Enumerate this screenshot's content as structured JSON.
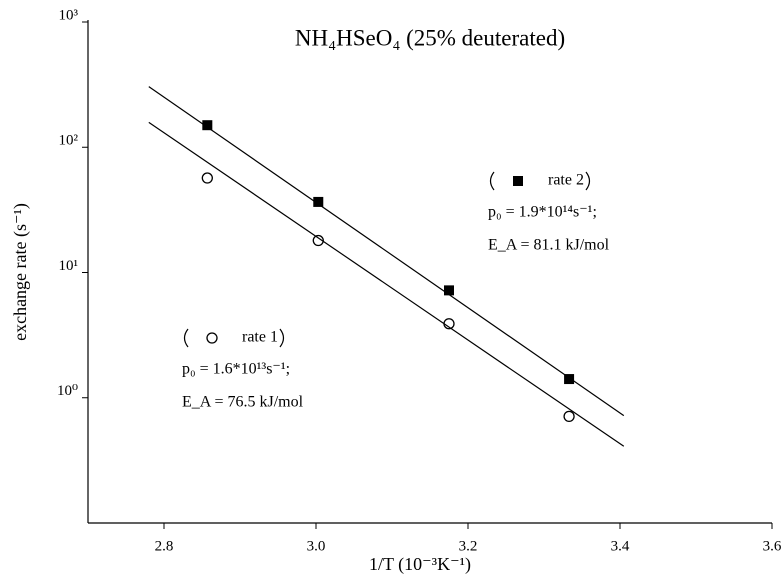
{
  "chart_data": {
    "type": "scatter",
    "title": "NH₄HSeO₄ (25% deuterated)",
    "xlabel": "1/T (10⁻³K⁻¹)",
    "ylabel": "exchange rate (s⁻¹)",
    "xlim": [
      2.7,
      3.6
    ],
    "xticks": [
      2.8,
      3.0,
      3.2,
      3.4,
      3.6
    ],
    "xtick_labels": [
      "2.8",
      "3.0",
      "3.2",
      "3.4",
      "3.6"
    ],
    "ylim": [
      0.1,
      1000
    ],
    "yscale": "log",
    "yticks": [
      {
        "value": 1,
        "label": "10⁰"
      },
      {
        "value": 10,
        "label": "10¹"
      },
      {
        "value": 100,
        "label": "10²"
      },
      {
        "value": 1000,
        "label": "10³"
      }
    ],
    "series": [
      {
        "name": "rate 2",
        "marker": "square",
        "color": "#000000",
        "x": [
          2.857,
          3.003,
          3.175,
          3.333
        ],
        "values": [
          150,
          36.6,
          7.2,
          1.41
        ],
        "fit_x": [
          2.78,
          3.405
        ],
        "fit_values": [
          305,
          0.72
        ],
        "annotations": [
          "p₀ = 1.9*10¹⁴s⁻¹;",
          "E_A = 81.1 kJ/mol"
        ]
      },
      {
        "name": "rate 1",
        "marker": "circle",
        "color": "#000000",
        "x": [
          2.857,
          3.003,
          3.175,
          3.333
        ],
        "values": [
          56.8,
          18,
          3.9,
          0.71
        ],
        "fit_x": [
          2.78,
          3.405
        ],
        "fit_values": [
          158,
          0.41
        ],
        "annotations": [
          "p₀ = 1.6*10¹³s⁻¹;",
          "E_A = 76.5 kJ/mol"
        ]
      }
    ]
  }
}
